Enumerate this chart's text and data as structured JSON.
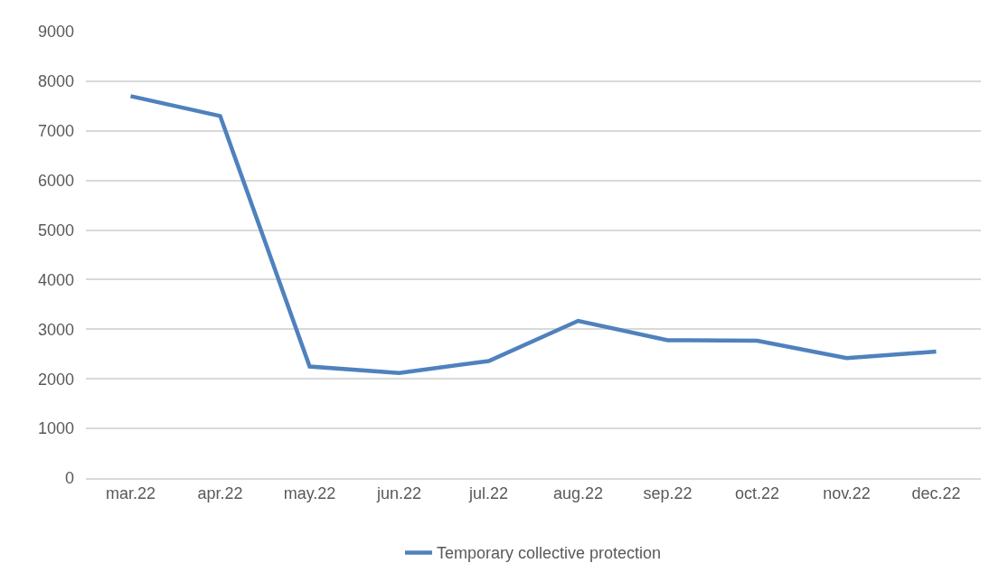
{
  "chart_data": {
    "type": "line",
    "categories": [
      "mar.22",
      "apr.22",
      "may.22",
      "jun.22",
      "jul.22",
      "aug.22",
      "sep.22",
      "oct.22",
      "nov.22",
      "dec.22"
    ],
    "series": [
      {
        "name": "Temporary collective protection",
        "color": "#4f81bd",
        "values": [
          7700,
          7300,
          2250,
          2120,
          2360,
          3170,
          2780,
          2770,
          2420,
          2550
        ]
      }
    ],
    "ylim": [
      0,
      9000
    ],
    "yticks": [
      0,
      1000,
      2000,
      3000,
      4000,
      5000,
      6000,
      7000,
      8000,
      9000
    ],
    "grid": "y",
    "legend": "bottom",
    "marker": "none",
    "line_style": "solid"
  }
}
